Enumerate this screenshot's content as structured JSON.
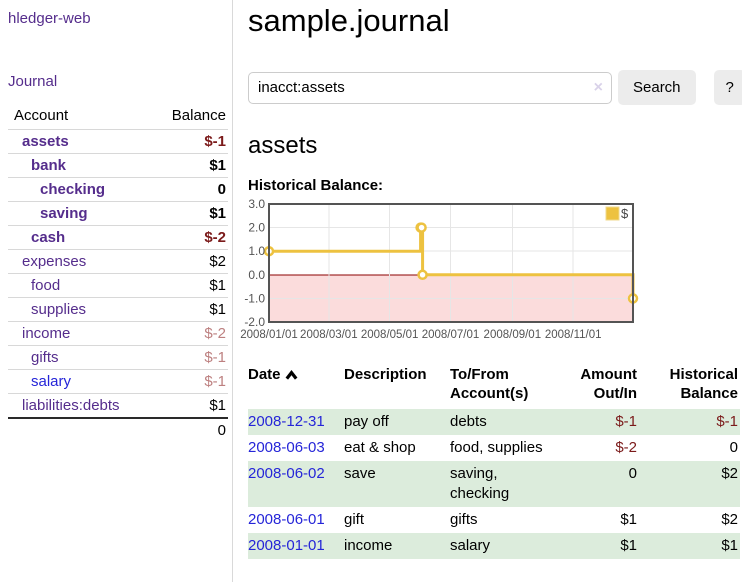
{
  "app": {
    "title": "hledger-web",
    "nav_journal": "Journal"
  },
  "sidebar": {
    "header": {
      "account": "Account",
      "balance": "Balance"
    },
    "accounts": [
      {
        "name": "assets",
        "depth": 1,
        "balance": "$-1",
        "bold": true,
        "neg": "strong",
        "link": "purple"
      },
      {
        "name": "bank",
        "depth": 2,
        "balance": "$1",
        "bold": true,
        "neg": "none",
        "link": "purple"
      },
      {
        "name": "checking",
        "depth": 3,
        "balance": "0",
        "bold": true,
        "neg": "none",
        "link": "purple"
      },
      {
        "name": "saving",
        "depth": 3,
        "balance": "$1",
        "bold": true,
        "neg": "none",
        "link": "purple"
      },
      {
        "name": "cash",
        "depth": 2,
        "balance": "$-2",
        "bold": true,
        "neg": "strong",
        "link": "purple"
      },
      {
        "name": "expenses",
        "depth": 1,
        "balance": "$2",
        "bold": false,
        "neg": "none",
        "link": "purple"
      },
      {
        "name": "food",
        "depth": 2,
        "balance": "$1",
        "bold": false,
        "neg": "none",
        "link": "purple"
      },
      {
        "name": "supplies",
        "depth": 2,
        "balance": "$1",
        "bold": false,
        "neg": "none",
        "link": "purple"
      },
      {
        "name": "income",
        "depth": 1,
        "balance": "$-2",
        "bold": false,
        "neg": "muted",
        "link": "purple"
      },
      {
        "name": "gifts",
        "depth": 2,
        "balance": "$-1",
        "bold": false,
        "neg": "muted",
        "link": "purple"
      },
      {
        "name": "salary",
        "depth": 2,
        "balance": "$-1",
        "bold": false,
        "neg": "muted",
        "link": "blue"
      },
      {
        "name": "liabilities:debts",
        "depth": 1,
        "balance": "$1",
        "bold": false,
        "neg": "none",
        "link": "purple"
      }
    ],
    "total": "0"
  },
  "header": {
    "title": "sample.journal"
  },
  "search": {
    "query": "inacct:assets",
    "clear_icon": "×",
    "button_label": "Search",
    "help_label": "?"
  },
  "account_page": {
    "heading": "assets",
    "chart_title": "Historical Balance:"
  },
  "chart_data": {
    "type": "line",
    "step": true,
    "title": "Historical Balance",
    "legend": [
      {
        "label": "$",
        "color": "#edc240"
      }
    ],
    "legend_position": "top-right",
    "grid": true,
    "ylim": [
      -2,
      3
    ],
    "y_ticks": [
      3.0,
      2.0,
      1.0,
      0.0,
      -1.0,
      -2.0
    ],
    "y_tick_labels": [
      "3.0",
      "2.0",
      "1.0",
      "0.0",
      "-1.0",
      "-2.0"
    ],
    "x_range_days": [
      0,
      365
    ],
    "x_tick_days": [
      0,
      60,
      121,
      182,
      244,
      305
    ],
    "x_tick_labels": [
      "2008/01/01",
      "2008/03/01",
      "2008/05/01",
      "2008/07/01",
      "2008/09/01",
      "2008/11/01"
    ],
    "points": [
      {
        "date": "2008-01-01",
        "day": 0,
        "value": 1
      },
      {
        "date": "2008-06-01",
        "day": 152,
        "value": 2
      },
      {
        "date": "2008-06-02",
        "day": 153,
        "value": 2
      },
      {
        "date": "2008-06-03",
        "day": 154,
        "value": 0
      },
      {
        "date": "2008-12-31",
        "day": 365,
        "value": -1
      }
    ],
    "colors": {
      "line": "#edc240",
      "marker_fill": "#ffffff",
      "negative_fill": "#fbdcdc",
      "zero_line": "#8b0000",
      "gridline": "#e6e6e6",
      "border": "#545454",
      "tick_text": "#545454"
    }
  },
  "register": {
    "headers": {
      "date": "Date",
      "description": "Description",
      "account": "To/From Account(s)",
      "amount": "Amount Out/In",
      "balance": "Historical Balance"
    },
    "rows": [
      {
        "date": "2008-12-31",
        "description": "pay off",
        "accounts": "debts",
        "amount": "$-1",
        "amount_neg": true,
        "balance": "$-1",
        "balance_neg": true,
        "shaded": true
      },
      {
        "date": "2008-06-03",
        "description": "eat & shop",
        "accounts": "food, supplies",
        "amount": "$-2",
        "amount_neg": true,
        "balance": "0",
        "balance_neg": false,
        "shaded": false
      },
      {
        "date": "2008-06-02",
        "description": "save",
        "accounts": "saving, checking",
        "amount": "0",
        "amount_neg": false,
        "balance": "$2",
        "balance_neg": false,
        "shaded": true
      },
      {
        "date": "2008-06-01",
        "description": "gift",
        "accounts": "gifts",
        "amount": "$1",
        "amount_neg": false,
        "balance": "$2",
        "balance_neg": false,
        "shaded": false
      },
      {
        "date": "2008-01-01",
        "description": "income",
        "accounts": "salary",
        "amount": "$1",
        "amount_neg": false,
        "balance": "$1",
        "balance_neg": false,
        "shaded": true
      }
    ]
  }
}
